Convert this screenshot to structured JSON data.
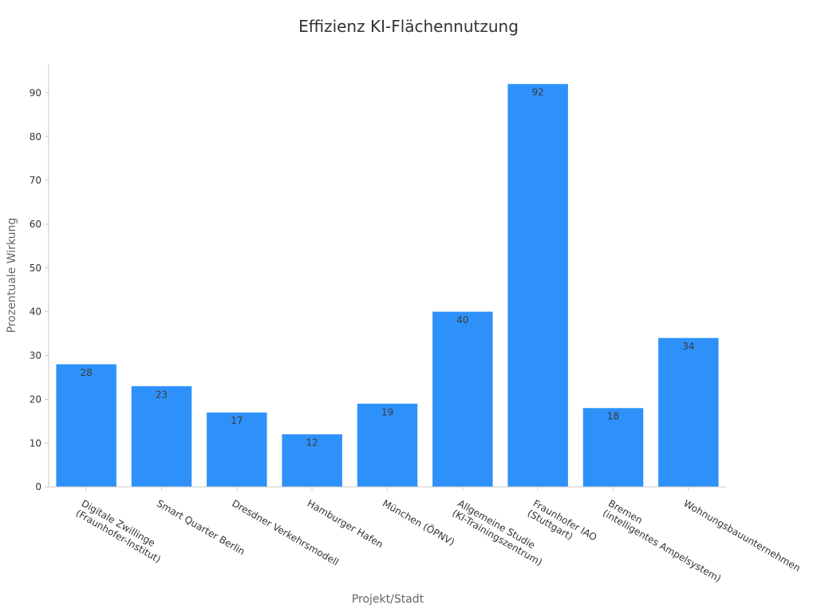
{
  "chart_data": {
    "type": "bar",
    "title": "Effizienz KI-Flächennutzung",
    "xlabel": "Projekt/Stadt",
    "ylabel": "Prozentuale Wirkung",
    "categories": [
      "Digitale Zwillinge\n(Fraunhofer-Institut)",
      "Smart Quarter Berlin",
      "Dresdner Verkehrsmodell",
      "Hamburger Hafen",
      "München (ÖPNV)",
      "Allgemeine Studie\n(KI-Trainingszentrum)",
      "Fraunhofer IAO\n(Stuttgart)",
      "Bremen\n(intelligentes Ampelsystem)",
      "Wohnungsbauunternehmen"
    ],
    "values": [
      28,
      23,
      17,
      12,
      19,
      40,
      92,
      18,
      34
    ],
    "ylim": [
      0,
      96.6
    ],
    "yticks": [
      0,
      10,
      20,
      30,
      40,
      50,
      60,
      70,
      80,
      90
    ],
    "grid": false,
    "legend": false,
    "data_labels": true,
    "colors": {
      "bar": "#2E91FA"
    }
  }
}
